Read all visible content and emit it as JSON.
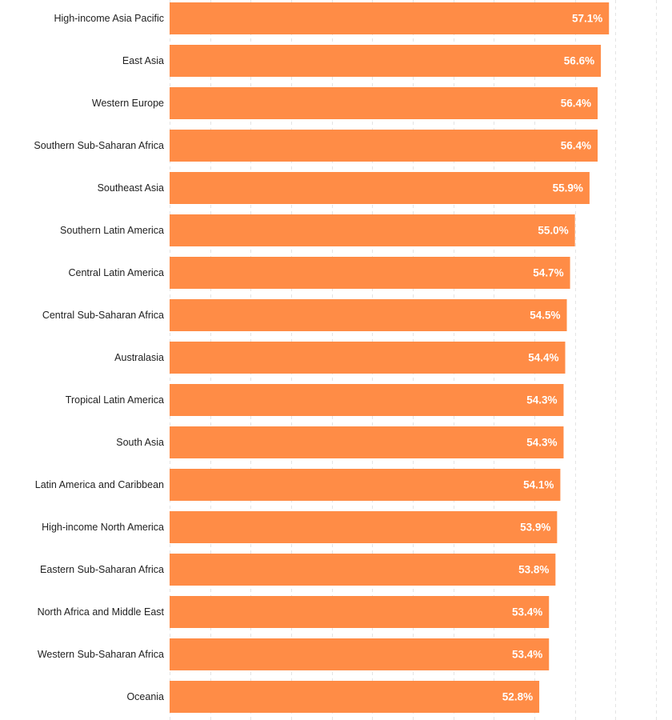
{
  "chart_data": {
    "type": "bar",
    "orientation": "horizontal",
    "categories": [
      "High-income Asia Pacific",
      "East Asia",
      "Western Europe",
      "Southern Sub-Saharan Africa",
      "Southeast Asia",
      "Southern Latin America",
      "Central Latin America",
      "Central Sub-Saharan Africa",
      "Australasia",
      "Tropical Latin America",
      "South Asia",
      "Latin America and Caribbean",
      "High-income North America",
      "Eastern Sub-Saharan Africa",
      "North Africa and Middle East",
      "Western Sub-Saharan Africa",
      "Oceania"
    ],
    "values": [
      57.1,
      56.6,
      56.4,
      56.4,
      55.9,
      55.0,
      54.7,
      54.5,
      54.4,
      54.3,
      54.3,
      54.1,
      53.9,
      53.8,
      53.4,
      53.4,
      52.8
    ],
    "value_labels": [
      "57.1%",
      "56.6%",
      "56.4%",
      "56.4%",
      "55.9%",
      "55.0%",
      "54.7%",
      "54.5%",
      "54.4%",
      "54.3%",
      "54.3%",
      "54.1%",
      "53.9%",
      "53.8%",
      "53.4%",
      "53.4%",
      "52.8%"
    ],
    "title": "",
    "xlabel": "",
    "ylabel": "",
    "xlim": [
      30,
      60
    ],
    "grid": true,
    "bar_color": "#ff8c46",
    "label_color": "#222222",
    "value_label_color": "#ffffff",
    "grid_color": "#e4e4e4"
  }
}
